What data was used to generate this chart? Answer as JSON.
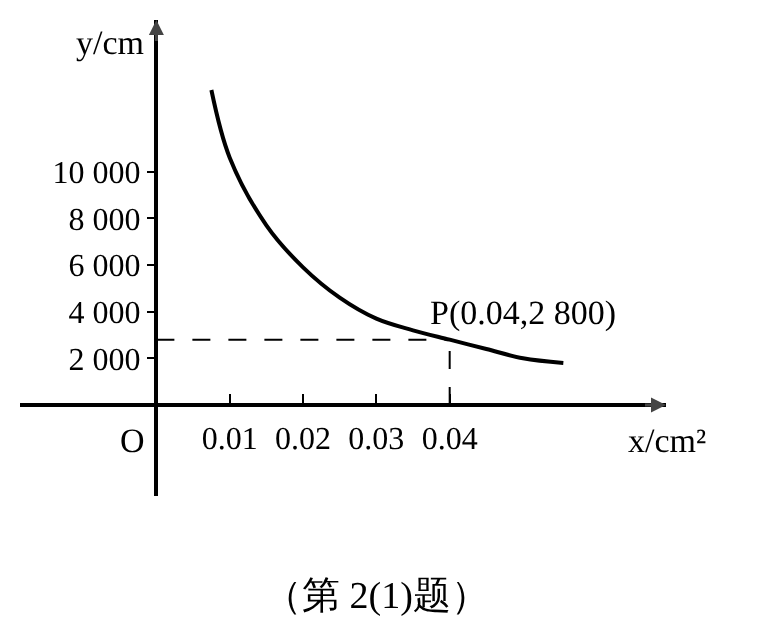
{
  "chart_data": {
    "type": "line",
    "x": [
      0.0075,
      0.01,
      0.015,
      0.02,
      0.025,
      0.03,
      0.035,
      0.04,
      0.045,
      0.05,
      0.0555
    ],
    "values": [
      13500,
      10600,
      7700,
      5900,
      4600,
      3700,
      3200,
      2800,
      2400,
      2000,
      1800
    ],
    "color": "#000000",
    "marker": "none",
    "line_style": "solid",
    "grid": false,
    "xlim": [
      -0.0186,
      0.0695
    ],
    "ylim": [
      -3900,
      16500
    ],
    "xticks": [
      0.01,
      0.02,
      0.03,
      0.04
    ],
    "yticks": [
      {
        "value": 2000,
        "label": "2 000"
      },
      {
        "value": 4000,
        "label": "4 000"
      },
      {
        "value": 6000,
        "label": "6 000"
      },
      {
        "value": 8000,
        "label": "8 000"
      },
      {
        "value": 10000,
        "label": "10 000"
      }
    ],
    "xlabel": "x/cm²",
    "ylabel": "y/cm",
    "annotations": [
      {
        "text": "P(0.04,2 800)",
        "x": 0.04,
        "y": 2800
      },
      "O",
      "（第 2(1)题）"
    ]
  }
}
